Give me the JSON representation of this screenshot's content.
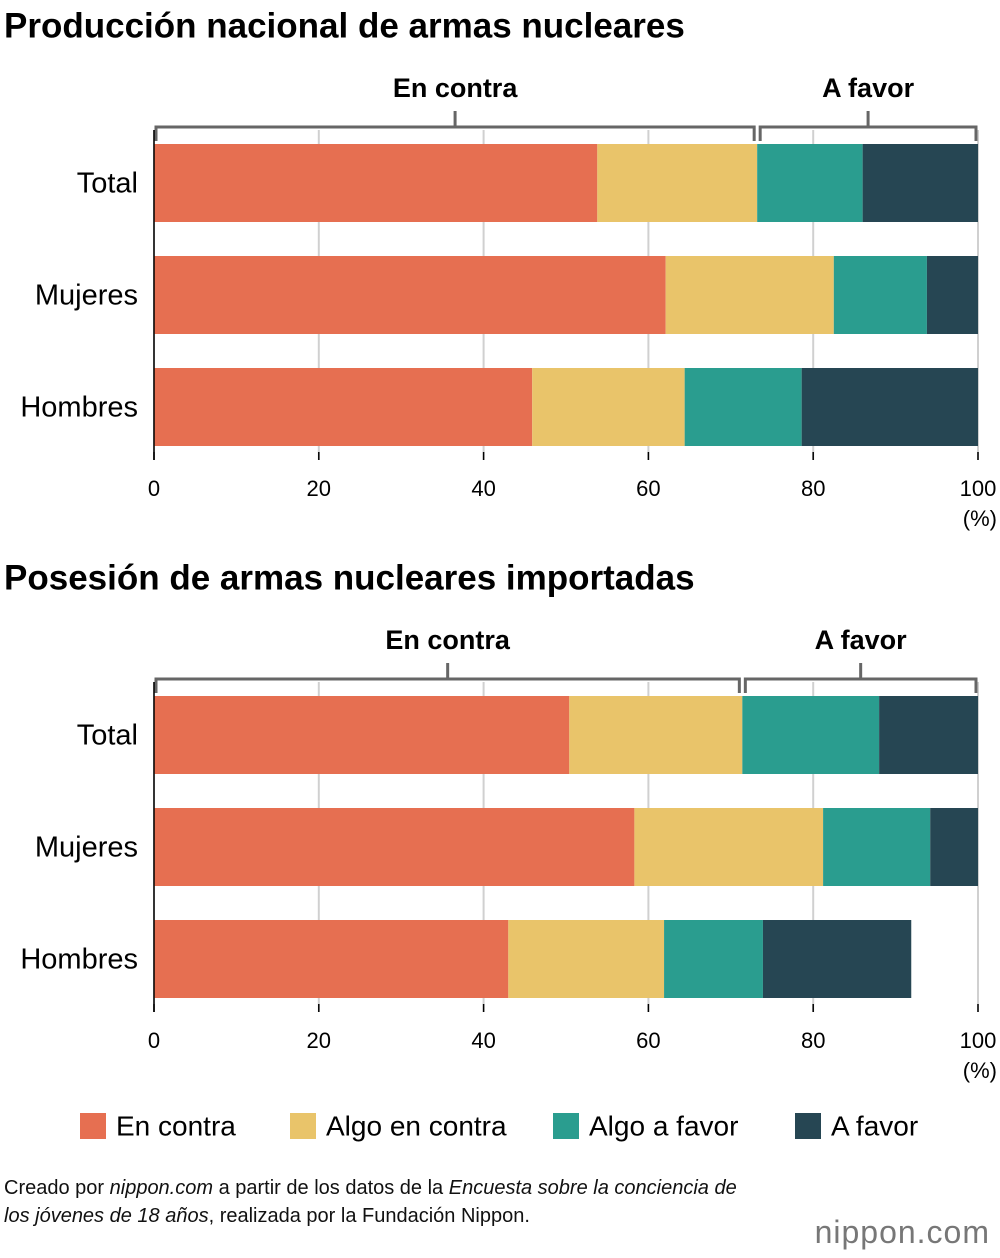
{
  "chart_data": [
    {
      "type": "bar",
      "orientation": "horizontal",
      "stacked": true,
      "title": "Producción nacional de armas nucleares",
      "group_labels": [
        "En contra",
        "A favor"
      ],
      "categories": [
        "Total",
        "Mujeres",
        "Hombres"
      ],
      "series": [
        {
          "values": [
            53.8,
            62.1,
            45.9
          ]
        },
        {
          "values": [
            19.4,
            20.4,
            18.5
          ]
        },
        {
          "values": [
            12.8,
            11.3,
            14.2
          ]
        },
        {
          "values": [
            14.0,
            6.2,
            21.4
          ]
        }
      ],
      "xlim": [
        0,
        100
      ],
      "xticks": [
        0,
        20,
        40,
        60,
        80,
        100
      ],
      "x_unit": "(%)",
      "grid": true
    },
    {
      "type": "bar",
      "orientation": "horizontal",
      "stacked": true,
      "title": "Posesión de armas nucleares importadas",
      "group_labels": [
        "En contra",
        "A favor"
      ],
      "categories": [
        "Total",
        "Mujeres",
        "Hombres"
      ],
      "series": [
        {
          "values": [
            50.4,
            58.3,
            43.0
          ]
        },
        {
          "values": [
            21.0,
            22.9,
            18.9
          ]
        },
        {
          "values": [
            16.6,
            13.0,
            12.0
          ]
        },
        {
          "values": [
            12.0,
            5.8,
            18.0
          ]
        }
      ],
      "xlim": [
        0,
        100
      ],
      "xticks": [
        0,
        20,
        40,
        60,
        80,
        100
      ],
      "x_unit": "(%)",
      "grid": true
    }
  ],
  "legend": {
    "position": "bottom",
    "items": [
      {
        "name": "En contra",
        "color": "#e66f51"
      },
      {
        "name": "Algo en contra",
        "color": "#e9c46a"
      },
      {
        "name": "Algo a favor",
        "color": "#2a9d8f"
      },
      {
        "name": "A favor",
        "color": "#264653"
      }
    ]
  },
  "footer": {
    "segments": [
      {
        "text": "Creado por ",
        "italic": false
      },
      {
        "text": "nippon.com",
        "italic": true
      },
      {
        "text": " a partir de los datos de la ",
        "italic": false
      },
      {
        "text": "Encuesta sobre la conciencia de los jóvenes de 18 años",
        "italic": true
      },
      {
        "text": ", realizada por la Fundación Nippon.",
        "italic": false
      }
    ]
  },
  "logo": "nippon.com"
}
